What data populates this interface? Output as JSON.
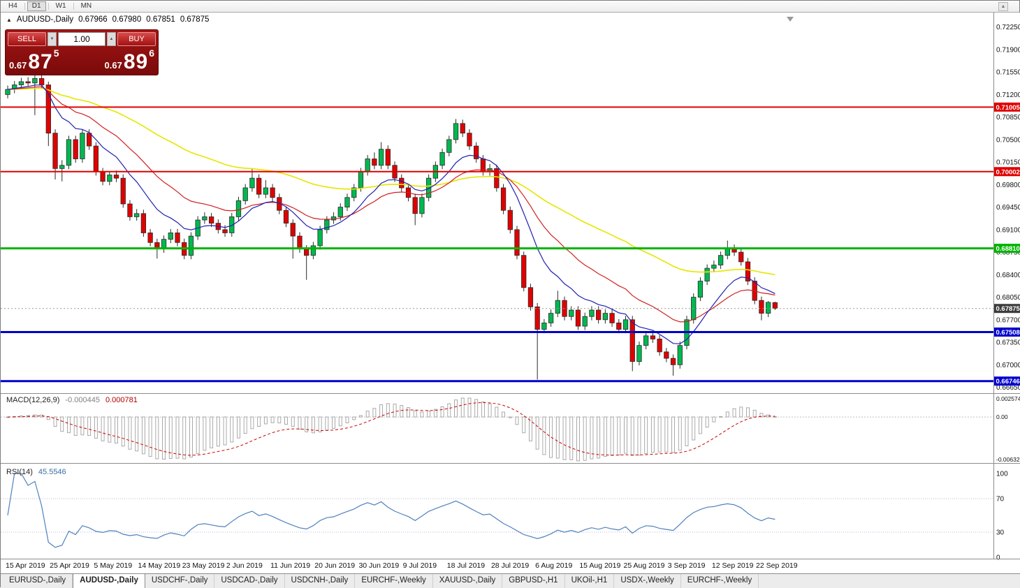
{
  "toolbar": {
    "timeframes": [
      "H4",
      "D1",
      "W1",
      "MN"
    ],
    "active_timeframe": "D1"
  },
  "chart_header": {
    "collapse_icon": "▲",
    "symbol": "AUDUSD-,Daily",
    "open": "0.67966",
    "high": "0.67980",
    "low": "0.67851",
    "close": "0.67875"
  },
  "trade_panel": {
    "sell_label": "SELL",
    "buy_label": "BUY",
    "volume": "1.00",
    "sell_price": {
      "prefix": "0.67",
      "big": "87",
      "sup": "5"
    },
    "buy_price": {
      "prefix": "0.67",
      "big": "89",
      "sup": "6"
    }
  },
  "indicators": {
    "macd": {
      "name": "MACD(12,26,9)",
      "value_main": "-0.000445",
      "value_signal": "0.000781",
      "scale_top": "0.0025745",
      "scale_zero": "0.00",
      "scale_bottom": "-0.0063265"
    },
    "rsi": {
      "name": "RSI(14)",
      "value": "45.5546",
      "scale": [
        "100",
        "70",
        "30",
        "0"
      ],
      "levels": [
        70,
        30
      ]
    }
  },
  "chart_data": {
    "type": "candlestick",
    "symbol": "AUDUSD",
    "timeframe": "Daily",
    "title": "AUDUSD-,Daily",
    "y_axis": {
      "max": 0.7242,
      "min": 0.6658,
      "ticks": [
        "0.72250",
        "0.71900",
        "0.71550",
        "0.71200",
        "0.70850",
        "0.70500",
        "0.70150",
        "0.69800",
        "0.69450",
        "0.69100",
        "0.68750",
        "0.68400",
        "0.68050",
        "0.67700",
        "0.67350",
        "0.67000",
        "0.66650"
      ]
    },
    "x_labels": [
      "15 Apr 2019",
      "25 Apr 2019",
      "5 May 2019",
      "14 May 2019",
      "23 May 2019",
      "2 Jun 2019",
      "11 Jun 2019",
      "20 Jun 2019",
      "30 Jun 2019",
      "9 Jul 2019",
      "18 Jul 2019",
      "28 Jul 2019",
      "6 Aug 2019",
      "15 Aug 2019",
      "25 Aug 2019",
      "3 Sep 2019",
      "12 Sep 2019",
      "22 Sep 2019"
    ],
    "x_label_bars": [
      0,
      6.5,
      13,
      19.5,
      26,
      32.5,
      39,
      45.5,
      52,
      58.5,
      65,
      71.5,
      78,
      84.5,
      91,
      97.5,
      104,
      110.5
    ],
    "ohlc": [
      [
        0.712,
        0.7134,
        0.7114,
        0.7128
      ],
      [
        0.7128,
        0.7141,
        0.7122,
        0.7135
      ],
      [
        0.7135,
        0.7146,
        0.7129,
        0.714
      ],
      [
        0.714,
        0.7147,
        0.7132,
        0.7138
      ],
      [
        0.7138,
        0.715,
        0.7088,
        0.7145
      ],
      [
        0.7145,
        0.7151,
        0.7129,
        0.7135
      ],
      [
        0.7135,
        0.714,
        0.704,
        0.706
      ],
      [
        0.706,
        0.7066,
        0.6988,
        0.7005
      ],
      [
        0.7005,
        0.7018,
        0.6985,
        0.701
      ],
      [
        0.701,
        0.7056,
        0.7004,
        0.705
      ],
      [
        0.705,
        0.7056,
        0.7014,
        0.702
      ],
      [
        0.702,
        0.7066,
        0.7014,
        0.706
      ],
      [
        0.706,
        0.7066,
        0.7034,
        0.704
      ],
      [
        0.704,
        0.7046,
        0.6994,
        0.7
      ],
      [
        0.7,
        0.7006,
        0.6979,
        0.6985
      ],
      [
        0.6985,
        0.7001,
        0.6979,
        0.6995
      ],
      [
        0.6995,
        0.7002,
        0.6984,
        0.699
      ],
      [
        0.699,
        0.6996,
        0.6944,
        0.695
      ],
      [
        0.695,
        0.6956,
        0.6924,
        0.693
      ],
      [
        0.693,
        0.6942,
        0.6924,
        0.6935
      ],
      [
        0.6935,
        0.6941,
        0.6899,
        0.6905
      ],
      [
        0.6905,
        0.6911,
        0.6884,
        0.689
      ],
      [
        0.689,
        0.6896,
        0.6865,
        0.688
      ],
      [
        0.688,
        0.6901,
        0.6874,
        0.6895
      ],
      [
        0.6895,
        0.6911,
        0.6889,
        0.6905
      ],
      [
        0.6905,
        0.6911,
        0.6884,
        0.689
      ],
      [
        0.689,
        0.6896,
        0.6864,
        0.687
      ],
      [
        0.687,
        0.6906,
        0.6864,
        0.69
      ],
      [
        0.69,
        0.6931,
        0.6894,
        0.6925
      ],
      [
        0.6925,
        0.6937,
        0.6919,
        0.693
      ],
      [
        0.693,
        0.6936,
        0.6914,
        0.692
      ],
      [
        0.692,
        0.6926,
        0.6904,
        0.691
      ],
      [
        0.691,
        0.6917,
        0.6899,
        0.6905
      ],
      [
        0.6905,
        0.6936,
        0.6899,
        0.693
      ],
      [
        0.693,
        0.6961,
        0.6924,
        0.6955
      ],
      [
        0.6955,
        0.6981,
        0.6949,
        0.6975
      ],
      [
        0.6975,
        0.7005,
        0.6969,
        0.699
      ],
      [
        0.699,
        0.6996,
        0.6959,
        0.6965
      ],
      [
        0.6965,
        0.6987,
        0.6959,
        0.6975
      ],
      [
        0.6975,
        0.6981,
        0.6954,
        0.696
      ],
      [
        0.696,
        0.6966,
        0.6934,
        0.694
      ],
      [
        0.694,
        0.6946,
        0.6914,
        0.692
      ],
      [
        0.692,
        0.6926,
        0.6865,
        0.69
      ],
      [
        0.69,
        0.6906,
        0.6874,
        0.688
      ],
      [
        0.688,
        0.6886,
        0.6832,
        0.687
      ],
      [
        0.687,
        0.6891,
        0.6864,
        0.6885
      ],
      [
        0.6885,
        0.6916,
        0.6879,
        0.691
      ],
      [
        0.691,
        0.6931,
        0.6904,
        0.6925
      ],
      [
        0.6925,
        0.6937,
        0.6919,
        0.693
      ],
      [
        0.693,
        0.6951,
        0.6924,
        0.6945
      ],
      [
        0.6945,
        0.6966,
        0.6939,
        0.696
      ],
      [
        0.696,
        0.6981,
        0.6954,
        0.6975
      ],
      [
        0.6975,
        0.7006,
        0.6969,
        0.7
      ],
      [
        0.7,
        0.7026,
        0.6994,
        0.702
      ],
      [
        0.702,
        0.703,
        0.7004,
        0.701
      ],
      [
        0.701,
        0.7046,
        0.7004,
        0.7035
      ],
      [
        0.7035,
        0.7041,
        0.7004,
        0.701
      ],
      [
        0.701,
        0.7016,
        0.6984,
        0.699
      ],
      [
        0.699,
        0.6996,
        0.6969,
        0.6975
      ],
      [
        0.6975,
        0.6981,
        0.6954,
        0.696
      ],
      [
        0.696,
        0.6966,
        0.6917,
        0.6935
      ],
      [
        0.6935,
        0.6966,
        0.6929,
        0.696
      ],
      [
        0.696,
        0.6996,
        0.6954,
        0.699
      ],
      [
        0.699,
        0.7016,
        0.6984,
        0.701
      ],
      [
        0.701,
        0.7036,
        0.7004,
        0.703
      ],
      [
        0.703,
        0.7056,
        0.7024,
        0.705
      ],
      [
        0.705,
        0.7082,
        0.7044,
        0.7075
      ],
      [
        0.7075,
        0.7081,
        0.7054,
        0.706
      ],
      [
        0.706,
        0.7066,
        0.7034,
        0.704
      ],
      [
        0.704,
        0.7046,
        0.7014,
        0.702
      ],
      [
        0.702,
        0.7026,
        0.6994,
        0.7
      ],
      [
        0.7,
        0.7012,
        0.6994,
        0.7005
      ],
      [
        0.7005,
        0.7011,
        0.6969,
        0.6975
      ],
      [
        0.6975,
        0.6981,
        0.6934,
        0.694
      ],
      [
        0.694,
        0.6946,
        0.6904,
        0.691
      ],
      [
        0.691,
        0.6916,
        0.6864,
        0.687
      ],
      [
        0.687,
        0.6876,
        0.6814,
        0.682
      ],
      [
        0.682,
        0.6826,
        0.6784,
        0.679
      ],
      [
        0.679,
        0.6796,
        0.6677,
        0.6755
      ],
      [
        0.6755,
        0.6771,
        0.6749,
        0.6765
      ],
      [
        0.6765,
        0.6786,
        0.6759,
        0.678
      ],
      [
        0.678,
        0.6815,
        0.6774,
        0.68
      ],
      [
        0.68,
        0.6806,
        0.6769,
        0.6775
      ],
      [
        0.6775,
        0.6791,
        0.6769,
        0.6785
      ],
      [
        0.6785,
        0.6791,
        0.6754,
        0.676
      ],
      [
        0.676,
        0.6781,
        0.6754,
        0.6775
      ],
      [
        0.6775,
        0.6791,
        0.6769,
        0.6785
      ],
      [
        0.6785,
        0.6791,
        0.6764,
        0.677
      ],
      [
        0.677,
        0.6786,
        0.6764,
        0.678
      ],
      [
        0.678,
        0.6786,
        0.6759,
        0.6765
      ],
      [
        0.6765,
        0.6771,
        0.6749,
        0.6755
      ],
      [
        0.6755,
        0.6776,
        0.6749,
        0.677
      ],
      [
        0.677,
        0.6776,
        0.669,
        0.6705
      ],
      [
        0.6705,
        0.6736,
        0.6699,
        0.673
      ],
      [
        0.673,
        0.6751,
        0.6724,
        0.6745
      ],
      [
        0.6745,
        0.6752,
        0.6734,
        0.674
      ],
      [
        0.674,
        0.6746,
        0.6714,
        0.672
      ],
      [
        0.672,
        0.6726,
        0.6704,
        0.671
      ],
      [
        0.671,
        0.6716,
        0.6683,
        0.67
      ],
      [
        0.67,
        0.6736,
        0.6694,
        0.673
      ],
      [
        0.673,
        0.6776,
        0.6724,
        0.677
      ],
      [
        0.677,
        0.6811,
        0.6764,
        0.6805
      ],
      [
        0.6805,
        0.6836,
        0.6799,
        0.683
      ],
      [
        0.683,
        0.6856,
        0.6824,
        0.685
      ],
      [
        0.685,
        0.6862,
        0.6844,
        0.6855
      ],
      [
        0.6855,
        0.6876,
        0.6849,
        0.687
      ],
      [
        0.687,
        0.6893,
        0.6864,
        0.688
      ],
      [
        0.688,
        0.6887,
        0.6869,
        0.6875
      ],
      [
        0.6875,
        0.6881,
        0.6854,
        0.686
      ],
      [
        0.686,
        0.6866,
        0.6824,
        0.683
      ],
      [
        0.683,
        0.6836,
        0.6794,
        0.68
      ],
      [
        0.68,
        0.6806,
        0.6769,
        0.678
      ],
      [
        0.678,
        0.6799,
        0.6774,
        0.6797
      ],
      [
        0.67966,
        0.6798,
        0.67851,
        0.67875
      ]
    ],
    "moving_averages": [
      {
        "period": 55,
        "color": "#e6e600",
        "width": 1.6
      },
      {
        "period": 21,
        "color": "#d02020",
        "width": 1.2
      },
      {
        "period": 10,
        "color": "#2020b0",
        "width": 1.2
      }
    ],
    "hlines": [
      {
        "price": 0.71005,
        "label": "0.71005",
        "color": "#e00000",
        "width": 2
      },
      {
        "price": 0.70002,
        "label": "0.70002",
        "color": "#e00000",
        "width": 2
      },
      {
        "price": 0.6881,
        "label": "0.68810",
        "color": "#00b400",
        "width": 3
      },
      {
        "price": 0.67508,
        "label": "0.67508",
        "color": "#0000cd",
        "width": 3
      },
      {
        "price": 0.66746,
        "label": "0.66746",
        "color": "#0000cd",
        "width": 3
      }
    ],
    "current_price": {
      "value": 0.67875,
      "label": "0.67875",
      "tag_color": "#3d3d3d"
    },
    "candle_colors": {
      "up": "#00b850",
      "down": "#e10000",
      "outline": "#2b2b2b"
    },
    "macd": {
      "fast": 12,
      "slow": 26,
      "signal": 9,
      "histogram_color": "#a0a0a0",
      "signal_color": "#cc0000"
    },
    "rsi": {
      "period": 14,
      "color": "#4f81bd"
    }
  },
  "bottom_tabs": {
    "active_index": 1,
    "tabs": [
      "EURUSD-,Daily",
      "AUDUSD-,Daily",
      "USDCHF-,Daily",
      "USDCAD-,Daily",
      "USDCNH-,Daily",
      "EURCHF-,Weekly",
      "XAUUSD-,Daily",
      "GBPUSD-,H1",
      "UKOil-,H1",
      "USDX-,Weekly",
      "EURCHF-,Weekly"
    ]
  }
}
